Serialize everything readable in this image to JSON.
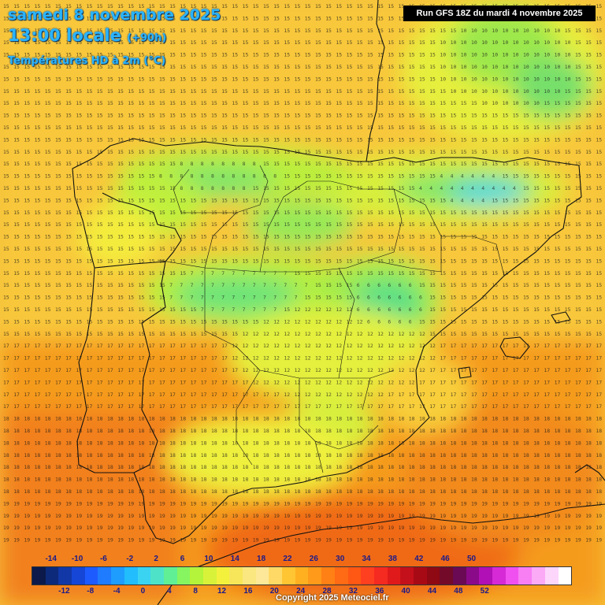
{
  "header": {
    "date": "samedi 8 novembre 2025",
    "time": "13:00 locale",
    "offset": "(+90h)",
    "variable": "Températures HD à 2m (°C)",
    "run": "Run GFS 18Z du mardi 4 novembre 2025"
  },
  "legend": {
    "top_ticks": [
      "-14",
      "-10",
      "-6",
      "-2",
      "2",
      "6",
      "10",
      "14",
      "18",
      "22",
      "26",
      "30",
      "34",
      "38",
      "42",
      "46",
      "50"
    ],
    "bottom_ticks": [
      "-12",
      "-8",
      "-4",
      "0",
      "4",
      "8",
      "12",
      "16",
      "20",
      "24",
      "28",
      "32",
      "36",
      "40",
      "44",
      "48",
      "52"
    ],
    "colors": [
      "#0b1a4a",
      "#0d2a7a",
      "#1238a8",
      "#1546d6",
      "#1e5bff",
      "#1f7cff",
      "#1e9dff",
      "#22bdfd",
      "#3ad4f2",
      "#4ee3c8",
      "#61ef95",
      "#86f560",
      "#b4f43a",
      "#d8f23a",
      "#f4f13c",
      "#f7e65a",
      "#fbe77f",
      "#fde899",
      "#ffd966",
      "#ffc533",
      "#ffb020",
      "#ff9a1a",
      "#ff8015",
      "#ff6a14",
      "#ff5714",
      "#ff4020",
      "#f52a20",
      "#e01a1a",
      "#c4101a",
      "#a80a15",
      "#8e0914",
      "#740a2a",
      "#6a0a55",
      "#8a0a8a",
      "#b010b5",
      "#d62ad6",
      "#f050ef",
      "#f77ef3",
      "#fbaaf6",
      "#fdd6fb",
      "#ffffff"
    ]
  },
  "copyright": "Copyright 2025 Meteociel.fr"
}
